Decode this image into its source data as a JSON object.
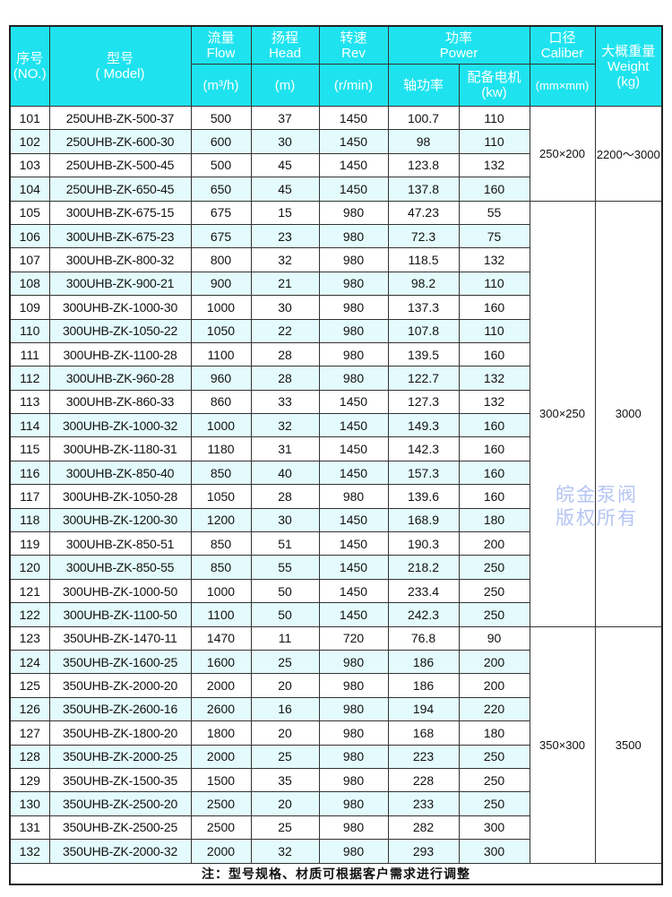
{
  "header": {
    "no": [
      "序号",
      "(NO.)"
    ],
    "model": [
      "型号",
      "( Model)"
    ],
    "flow": [
      "流量",
      "Flow",
      "(m³/h)"
    ],
    "head": [
      "扬程",
      "Head",
      "(m)"
    ],
    "rev": [
      "转速",
      "Rev",
      "(r/min)"
    ],
    "power": [
      "功率",
      "Power"
    ],
    "shaft_power": "轴功率",
    "motor": [
      "配备电机",
      "(kw)"
    ],
    "caliber": [
      "口径",
      "Caliber",
      "(mm×mm)"
    ],
    "weight": [
      "大概重量",
      "Weight",
      "(kg)"
    ]
  },
  "rows": [
    [
      "101",
      "250UHB-ZK-500-37",
      "500",
      "37",
      "1450",
      "100.7",
      "110"
    ],
    [
      "102",
      "250UHB-ZK-600-30",
      "600",
      "30",
      "1450",
      "98",
      "110"
    ],
    [
      "103",
      "250UHB-ZK-500-45",
      "500",
      "45",
      "1450",
      "123.8",
      "132"
    ],
    [
      "104",
      "250UHB-ZK-650-45",
      "650",
      "45",
      "1450",
      "137.8",
      "160"
    ],
    [
      "105",
      "300UHB-ZK-675-15",
      "675",
      "15",
      "980",
      "47.23",
      "55"
    ],
    [
      "106",
      "300UHB-ZK-675-23",
      "675",
      "23",
      "980",
      "72.3",
      "75"
    ],
    [
      "107",
      "300UHB-ZK-800-32",
      "800",
      "32",
      "980",
      "118.5",
      "132"
    ],
    [
      "108",
      "300UHB-ZK-900-21",
      "900",
      "21",
      "980",
      "98.2",
      "110"
    ],
    [
      "109",
      "300UHB-ZK-1000-30",
      "1000",
      "30",
      "980",
      "137.3",
      "160"
    ],
    [
      "110",
      "300UHB-ZK-1050-22",
      "1050",
      "22",
      "980",
      "107.8",
      "110"
    ],
    [
      "111",
      "300UHB-ZK-1100-28",
      "1100",
      "28",
      "980",
      "139.5",
      "160"
    ],
    [
      "112",
      "300UHB-ZK-960-28",
      "960",
      "28",
      "980",
      "122.7",
      "132"
    ],
    [
      "113",
      "300UHB-ZK-860-33",
      "860",
      "33",
      "1450",
      "127.3",
      "132"
    ],
    [
      "114",
      "300UHB-ZK-1000-32",
      "1000",
      "32",
      "1450",
      "149.3",
      "160"
    ],
    [
      "115",
      "300UHB-ZK-1180-31",
      "1180",
      "31",
      "1450",
      "142.3",
      "160"
    ],
    [
      "116",
      "300UHB-ZK-850-40",
      "850",
      "40",
      "1450",
      "157.3",
      "160"
    ],
    [
      "117",
      "300UHB-ZK-1050-28",
      "1050",
      "28",
      "980",
      "139.6",
      "160"
    ],
    [
      "118",
      "300UHB-ZK-1200-30",
      "1200",
      "30",
      "1450",
      "168.9",
      "180"
    ],
    [
      "119",
      "300UHB-ZK-850-51",
      "850",
      "51",
      "1450",
      "190.3",
      "200"
    ],
    [
      "120",
      "300UHB-ZK-850-55",
      "850",
      "55",
      "1450",
      "218.2",
      "250"
    ],
    [
      "121",
      "300UHB-ZK-1000-50",
      "1000",
      "50",
      "1450",
      "233.4",
      "250"
    ],
    [
      "122",
      "300UHB-ZK-1100-50",
      "1100",
      "50",
      "1450",
      "242.3",
      "250"
    ],
    [
      "123",
      "350UHB-ZK-1470-11",
      "1470",
      "11",
      "720",
      "76.8",
      "90"
    ],
    [
      "124",
      "350UHB-ZK-1600-25",
      "1600",
      "25",
      "980",
      "186",
      "200"
    ],
    [
      "125",
      "350UHB-ZK-2000-20",
      "2000",
      "20",
      "980",
      "186",
      "200"
    ],
    [
      "126",
      "350UHB-ZK-2600-16",
      "2600",
      "16",
      "980",
      "194",
      "220"
    ],
    [
      "127",
      "350UHB-ZK-1800-20",
      "1800",
      "20",
      "980",
      "168",
      "180"
    ],
    [
      "128",
      "350UHB-ZK-2000-25",
      "2000",
      "25",
      "980",
      "223",
      "250"
    ],
    [
      "129",
      "350UHB-ZK-1500-35",
      "1500",
      "35",
      "980",
      "228",
      "250"
    ],
    [
      "130",
      "350UHB-ZK-2500-20",
      "2500",
      "20",
      "980",
      "233",
      "250"
    ],
    [
      "131",
      "350UHB-ZK-2500-25",
      "2500",
      "25",
      "980",
      "282",
      "300"
    ],
    [
      "132",
      "350UHB-ZK-2000-32",
      "2000",
      "32",
      "980",
      "293",
      "300"
    ]
  ],
  "groups": [
    {
      "count": 4,
      "caliber": "250×200",
      "weight": "2200～3000"
    },
    {
      "count": 18,
      "caliber": "300×250",
      "weight": "3000"
    },
    {
      "count": 10,
      "caliber": "350×300",
      "weight": "3500"
    }
  ],
  "note": "注：型号规格、材质可根据客户需求进行调整",
  "watermark": "皖金泵阀  版权所有",
  "colors": {
    "header_bg": "#1ee3ef",
    "alt_row": "#e4fbfd"
  }
}
